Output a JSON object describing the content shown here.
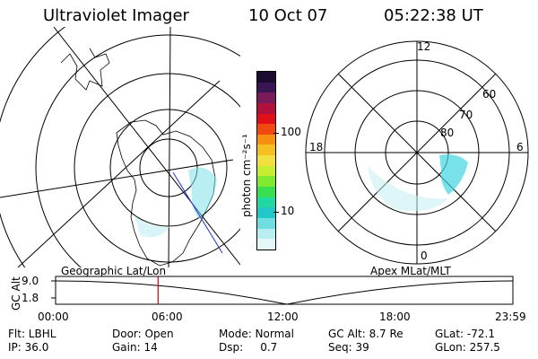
{
  "header": {
    "instrument": "Ultraviolet Imager",
    "date": "10 Oct 07",
    "time": "05:22:38 UT"
  },
  "left_panel": {
    "label": "Geographic Lat/Lon"
  },
  "right_panel": {
    "label": "Apex MLat/MLT",
    "mlt_labels": [
      "12",
      "18",
      "6",
      "0"
    ],
    "mlat_labels": [
      "60",
      "70",
      "80"
    ]
  },
  "colorbar": {
    "unit_label": "photon cm⁻²s⁻¹",
    "ticks": [
      "100",
      "10"
    ],
    "colors": [
      "#1b0b2e",
      "#3a1555",
      "#7a1a5a",
      "#b0103a",
      "#e0101a",
      "#f04a10",
      "#f59010",
      "#f6c020",
      "#f2e040",
      "#c8ee30",
      "#80ea30",
      "#38e050",
      "#20d8a0",
      "#20c8c8",
      "#70dede",
      "#b8eef0",
      "#e4f6f8"
    ]
  },
  "orbit_plot": {
    "y_axis_label": "GC Alt",
    "y_ticks": [
      "9.0",
      "1.8"
    ],
    "x_ticks": [
      "00:00",
      "06:00",
      "12:00",
      "18:00",
      "23:59"
    ],
    "current_time_hours": 5.378
  },
  "info": {
    "col1": [
      "Flt: LBHL",
      "IP: 36.0"
    ],
    "col2": [
      "Door: Open",
      "Gain: 14"
    ],
    "col3": [
      "Mode: Normal",
      "Dsp:     0.7"
    ],
    "col4": [
      "GC Alt: 8.7 Re",
      "Seq: 39"
    ],
    "col5": [
      "GLat: -72.1",
      "GLon: 257.5"
    ]
  }
}
